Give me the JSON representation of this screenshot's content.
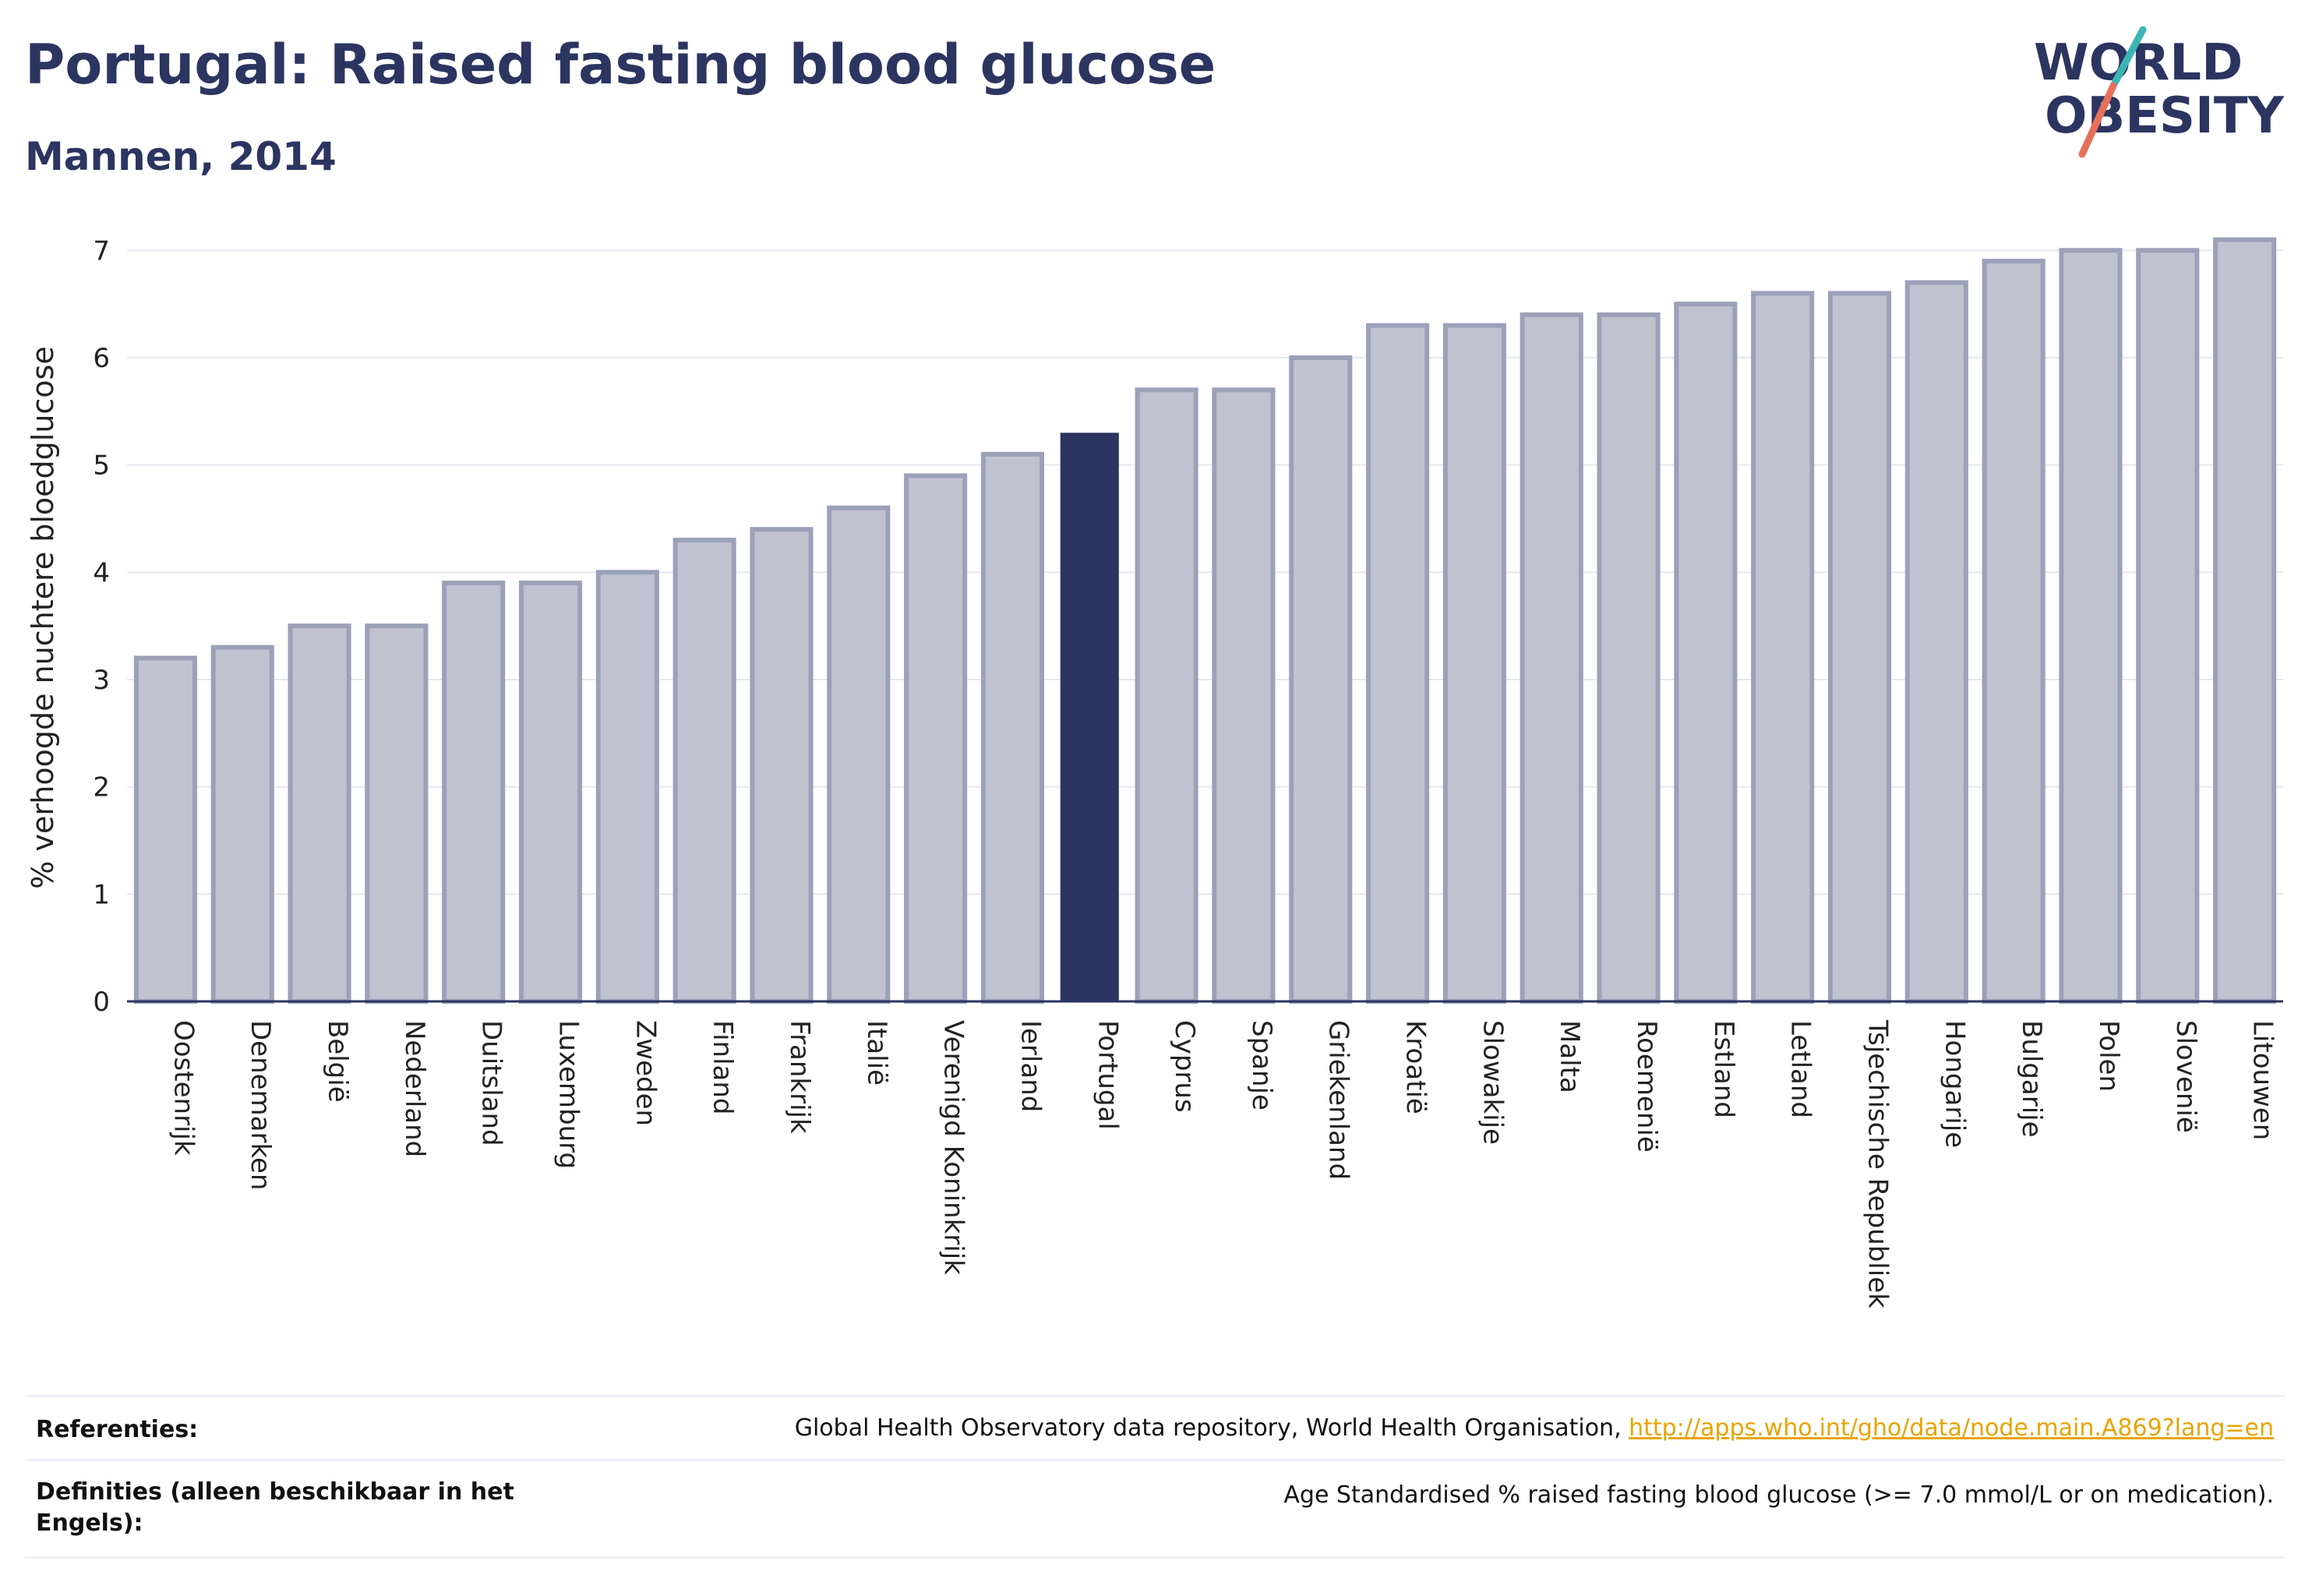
{
  "header": {
    "title": "Portugal: Raised fasting blood glucose",
    "subtitle": "Mannen, 2014"
  },
  "logo": {
    "line1": "WORLD",
    "line2": "OBESITY",
    "accent_teal": "#3bb5b5",
    "accent_coral": "#e8705a",
    "text_color": "#2b3560"
  },
  "colors": {
    "bar_default": "#bfc3d0",
    "bar_border": "#9aa1b8",
    "bar_highlight": "#2b3560",
    "grid": "#e6e8ef",
    "axis": "#2b3560"
  },
  "chart_data": {
    "type": "bar",
    "ylabel": "% verhoogde nuchtere bloedglucose",
    "xlabel": "",
    "ylim": [
      0,
      7.3
    ],
    "yticks": [
      0,
      1,
      2,
      3,
      4,
      5,
      6,
      7
    ],
    "highlight": "Portugal",
    "grid": true,
    "categories": [
      "Oostenrijk",
      "Denemarken",
      "België",
      "Nederland",
      "Duitsland",
      "Luxemburg",
      "Zweden",
      "Finland",
      "Frankrijk",
      "Italië",
      "Verenigd Koninkrijk",
      "Ierland",
      "Portugal",
      "Cyprus",
      "Spanje",
      "Griekenland",
      "Kroatië",
      "Slowakije",
      "Malta",
      "Roemenië",
      "Estland",
      "Letland",
      "Tsjechische Republiek",
      "Hongarije",
      "Bulgarije",
      "Polen",
      "Slovenië",
      "Litouwen"
    ],
    "values": [
      3.2,
      3.3,
      3.5,
      3.5,
      3.9,
      3.9,
      4.0,
      4.3,
      4.4,
      4.6,
      4.9,
      5.1,
      5.3,
      5.7,
      5.7,
      6.0,
      6.3,
      6.3,
      6.4,
      6.4,
      6.5,
      6.6,
      6.6,
      6.7,
      6.9,
      7.0,
      7.0,
      7.1
    ]
  },
  "footer": {
    "references_label": "Referenties:",
    "references_text": "Global Health Observatory data repository, World Health Organisation, ",
    "references_link": "http://apps.who.int/gho/data/node.main.A869?lang=en",
    "definitions_label": "Definities (alleen beschikbaar in het Engels):",
    "definitions_text": "Age Standardised % raised fasting blood glucose (>= 7.0 mmol/L or on medication)."
  }
}
